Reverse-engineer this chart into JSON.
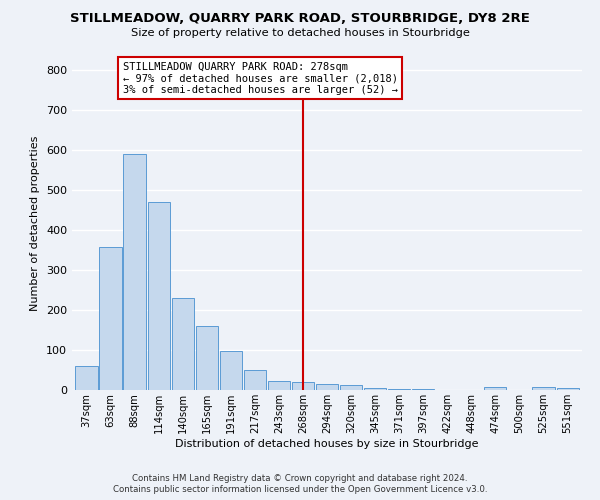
{
  "title": "STILLMEADOW, QUARRY PARK ROAD, STOURBRIDGE, DY8 2RE",
  "subtitle": "Size of property relative to detached houses in Stourbridge",
  "xlabel": "Distribution of detached houses by size in Stourbridge",
  "ylabel": "Number of detached properties",
  "bar_color": "#c5d8ed",
  "bar_edge_color": "#5b9bd5",
  "categories": [
    "37sqm",
    "63sqm",
    "88sqm",
    "114sqm",
    "140sqm",
    "165sqm",
    "191sqm",
    "217sqm",
    "243sqm",
    "268sqm",
    "294sqm",
    "320sqm",
    "345sqm",
    "371sqm",
    "397sqm",
    "422sqm",
    "448sqm",
    "474sqm",
    "500sqm",
    "525sqm",
    "551sqm"
  ],
  "values": [
    60,
    357,
    590,
    470,
    230,
    160,
    98,
    50,
    22,
    20,
    15,
    12,
    5,
    3,
    2,
    1,
    0,
    8,
    0,
    8,
    5
  ],
  "ylim": [
    0,
    830
  ],
  "yticks": [
    0,
    100,
    200,
    300,
    400,
    500,
    600,
    700,
    800
  ],
  "vline_index": 9,
  "vline_color": "#cc0000",
  "annotation_title": "STILLMEADOW QUARRY PARK ROAD: 278sqm",
  "annotation_line1": "← 97% of detached houses are smaller (2,018)",
  "annotation_line2": "3% of semi-detached houses are larger (52) →",
  "annotation_box_color": "#ffffff",
  "annotation_box_edge": "#cc0000",
  "footer1": "Contains HM Land Registry data © Crown copyright and database right 2024.",
  "footer2": "Contains public sector information licensed under the Open Government Licence v3.0.",
  "background_color": "#eef2f8",
  "grid_color": "#ffffff"
}
